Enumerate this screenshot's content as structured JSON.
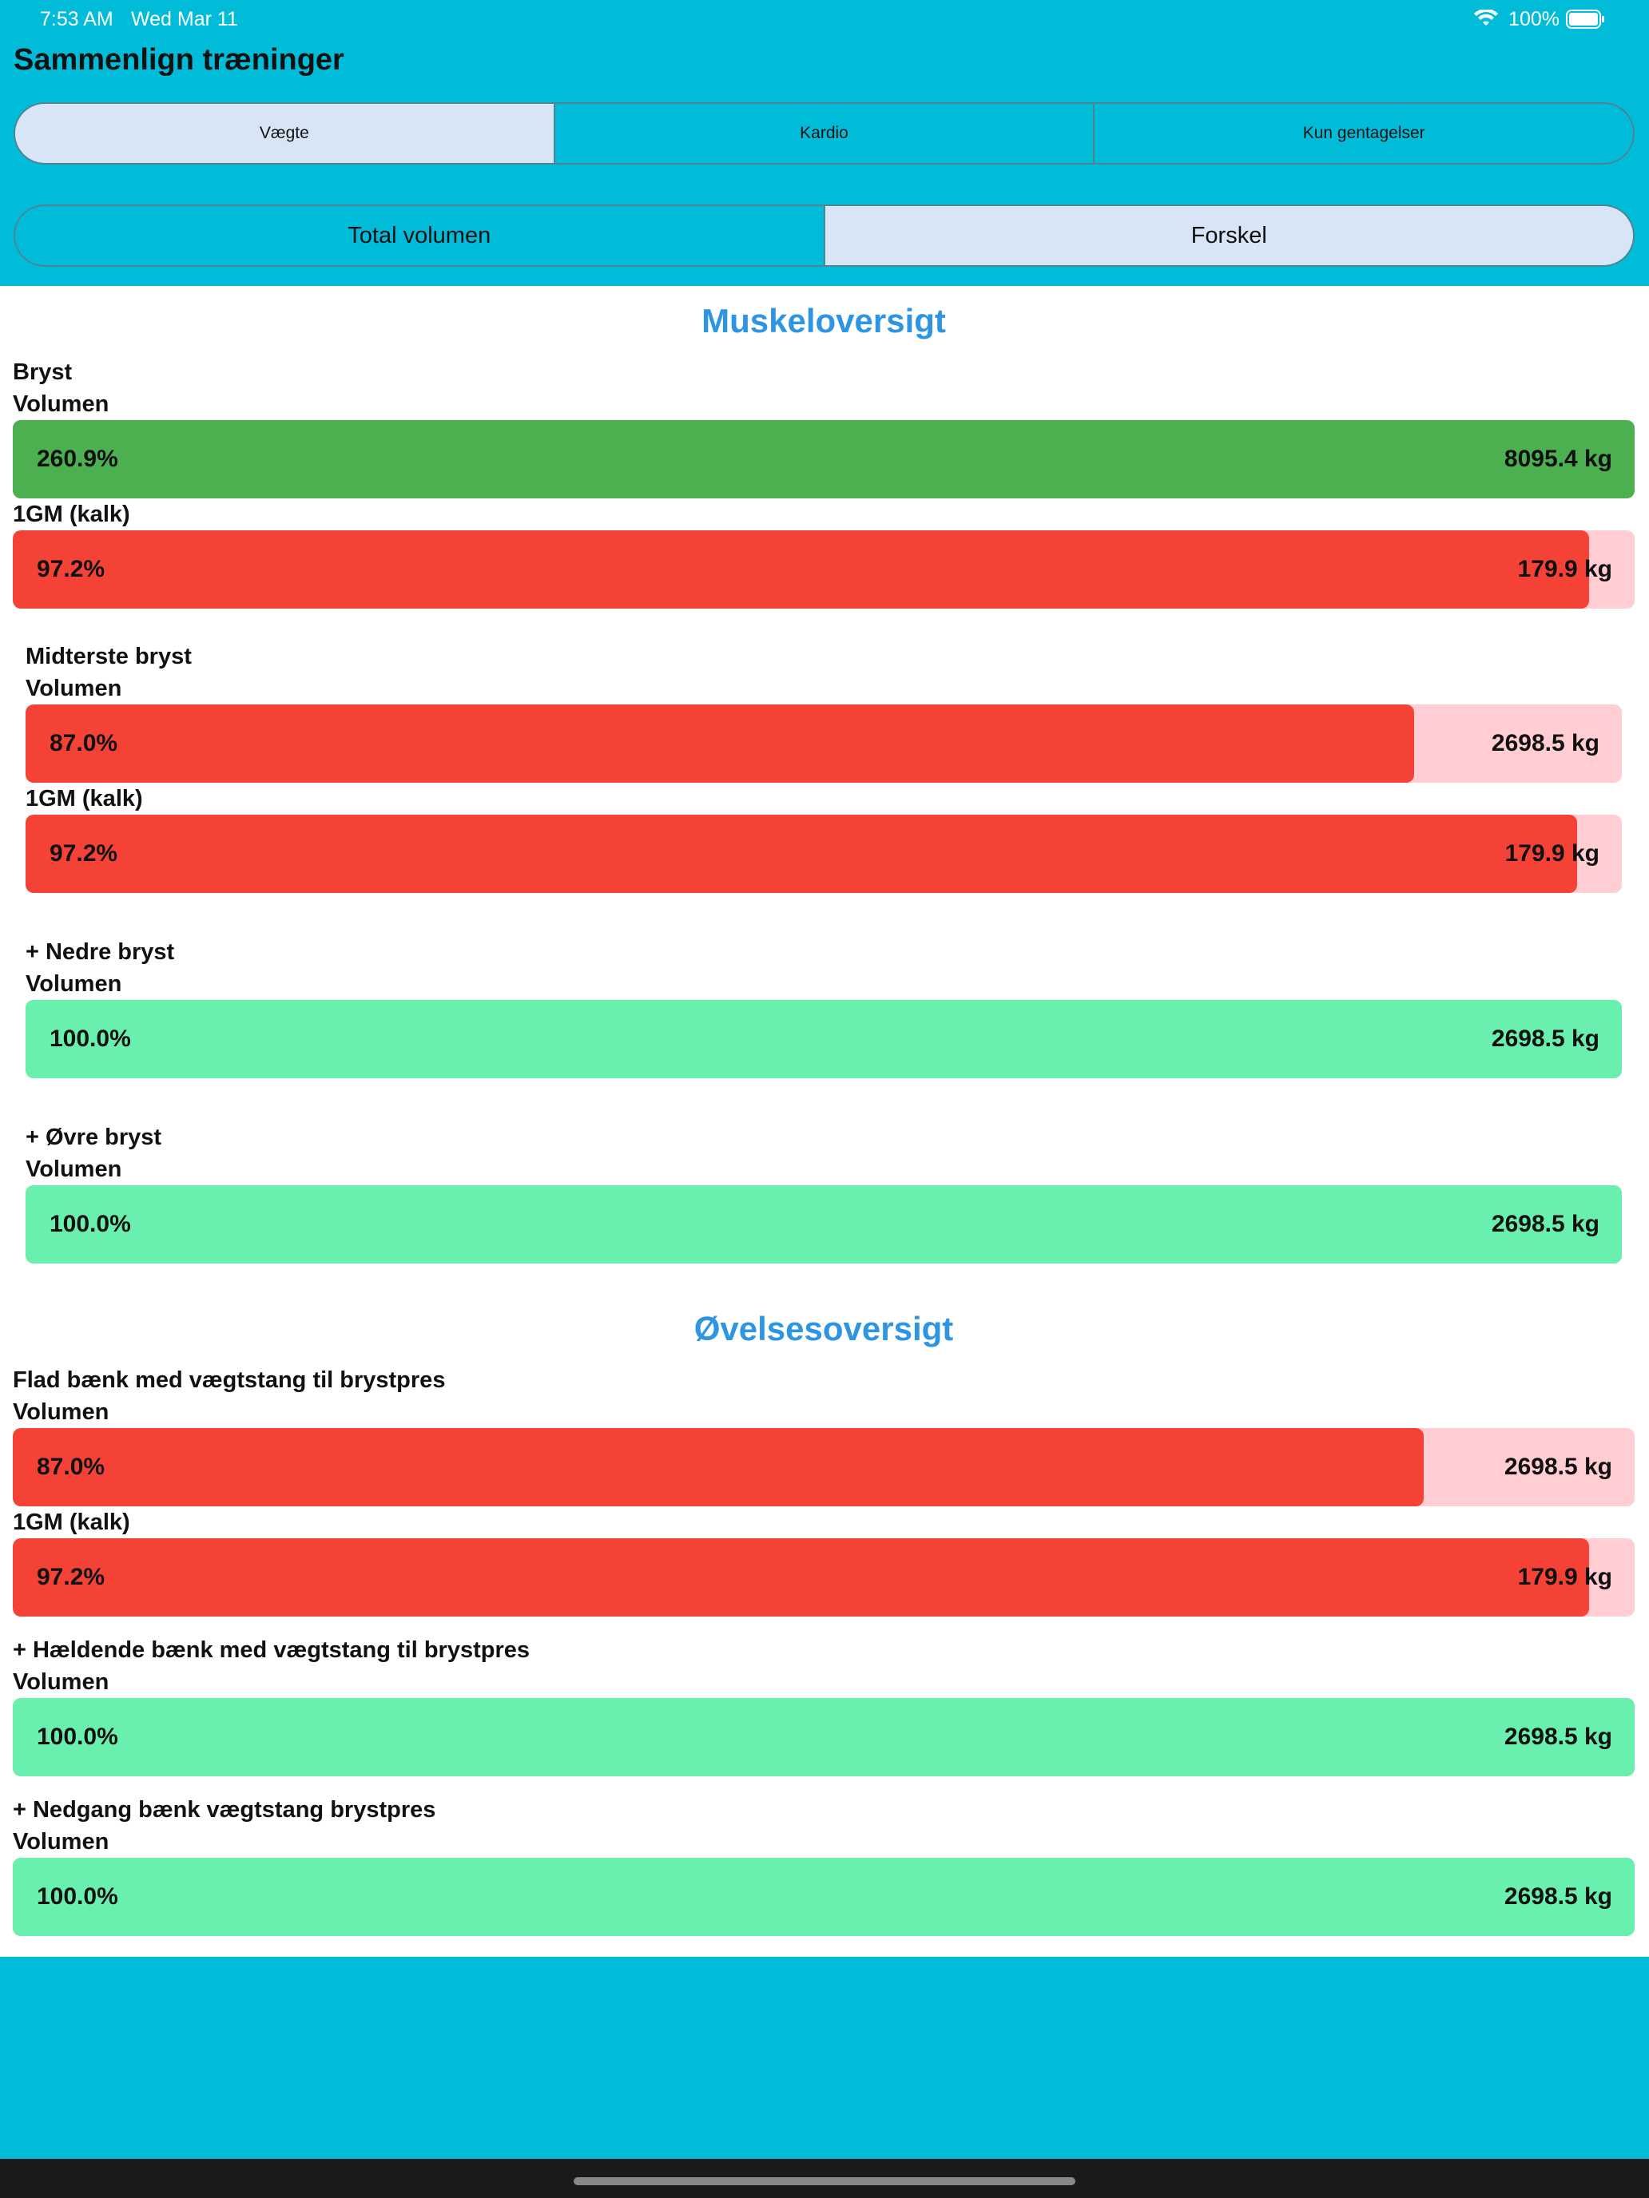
{
  "status_bar": {
    "time": "7:53 AM",
    "date": "Wed Mar 11",
    "battery": "100%"
  },
  "header": {
    "title": "Sammenlign træninger"
  },
  "tabs_1": {
    "items": [
      "Vægte",
      "Kardio",
      "Kun gentagelser"
    ],
    "selected": 0
  },
  "tabs_2": {
    "items": [
      "Total volumen",
      "Forskel"
    ],
    "selected": 1
  },
  "sections": [
    {
      "heading": "Muskeloversigt",
      "groups": [
        {
          "name": "Bryst",
          "indent": false,
          "metrics": [
            {
              "label": "Volumen",
              "percent": "260.9%",
              "amount": "8095.4 kg",
              "color": "#4caf50",
              "track": "#4caf50"
            },
            {
              "label": "1GM (kalk)",
              "percent": "97.2%",
              "amount": "179.9 kg",
              "color": "#f44336",
              "track": "#ffcdd2"
            }
          ]
        },
        {
          "name": "Midterste bryst",
          "indent": true,
          "metrics": [
            {
              "label": "Volumen",
              "percent": "87.0%",
              "amount": "2698.5 kg",
              "color": "#f44336",
              "track": "#ffcdd2"
            },
            {
              "label": "1GM (kalk)",
              "percent": "97.2%",
              "amount": "179.9 kg",
              "color": "#f44336",
              "track": "#ffcdd2"
            }
          ]
        },
        {
          "name": "+ Nedre bryst",
          "indent": true,
          "metrics": [
            {
              "label": "Volumen",
              "percent": "100.0%",
              "amount": "2698.5 kg",
              "color": "#69f0ae",
              "track": "#69f0ae"
            }
          ]
        },
        {
          "name": "+ Øvre bryst",
          "indent": true,
          "metrics": [
            {
              "label": "Volumen",
              "percent": "100.0%",
              "amount": "2698.5 kg",
              "color": "#69f0ae",
              "track": "#69f0ae"
            }
          ]
        }
      ]
    },
    {
      "heading": "Øvelsesoversigt",
      "groups": [
        {
          "name": "Flad bænk med vægtstang til brystpres",
          "indent": false,
          "metrics": [
            {
              "label": "Volumen",
              "percent": "87.0%",
              "amount": "2698.5 kg",
              "color": "#f44336",
              "track": "#ffcdd2"
            },
            {
              "label": "1GM (kalk)",
              "percent": "97.2%",
              "amount": "179.9 kg",
              "color": "#f44336",
              "track": "#ffcdd2"
            }
          ]
        },
        {
          "name": "+ Hældende bænk med vægtstang til brystpres",
          "indent": false,
          "metrics": [
            {
              "label": "Volumen",
              "percent": "100.0%",
              "amount": "2698.5 kg",
              "color": "#69f0ae",
              "track": "#69f0ae"
            }
          ]
        },
        {
          "name": "+ Nedgang bænk vægtstang brystpres",
          "indent": false,
          "metrics": [
            {
              "label": "Volumen",
              "percent": "100.0%",
              "amount": "2698.5 kg",
              "color": "#69f0ae",
              "track": "#69f0ae"
            }
          ]
        }
      ]
    }
  ]
}
